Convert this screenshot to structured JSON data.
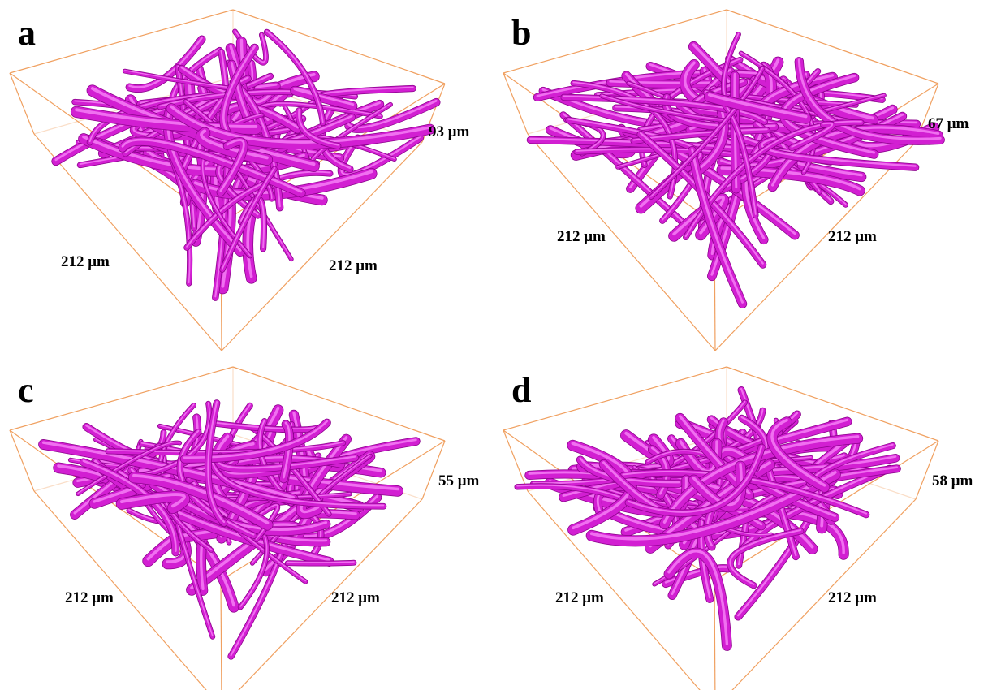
{
  "panels": [
    {
      "label": "a",
      "height": "93 μm",
      "left_edge": "212 μm",
      "right_edge": "212 μm"
    },
    {
      "label": "b",
      "height": "67 μm",
      "left_edge": "212 μm",
      "right_edge": "212 μm"
    },
    {
      "label": "c",
      "height": "55 μm",
      "left_edge": "212 μm",
      "right_edge": "212 μm"
    },
    {
      "label": "d",
      "height": "58 μm",
      "left_edge": "212 μm",
      "right_edge": "212 μm"
    }
  ]
}
